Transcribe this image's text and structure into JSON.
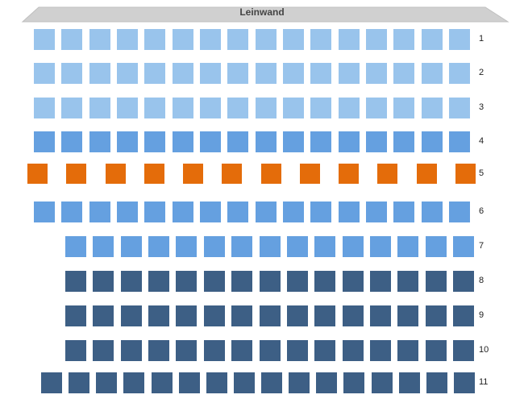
{
  "screen": {
    "label": "Leinwand"
  },
  "colors": {
    "screen_fill": "#d0d0d0",
    "screen_stroke": "#bfbfbf",
    "light_blue": "#99c4ec",
    "medium_blue": "#65a0e0",
    "orange": "#e46c0a",
    "dark_blue": "#3d5f85"
  },
  "rows": [
    {
      "label": "1",
      "color": "light_blue",
      "seats": 16
    },
    {
      "label": "2",
      "color": "light_blue",
      "seats": 16
    },
    {
      "label": "3",
      "color": "light_blue",
      "seats": 16
    },
    {
      "label": "4",
      "color": "medium_blue",
      "seats": 16
    },
    {
      "label": "5",
      "color": "orange",
      "seats": 12
    },
    {
      "label": "6",
      "color": "medium_blue",
      "seats": 16
    },
    {
      "label": "7",
      "color": "medium_blue",
      "seats": 15
    },
    {
      "label": "8",
      "color": "dark_blue",
      "seats": 15
    },
    {
      "label": "9",
      "color": "dark_blue",
      "seats": 15
    },
    {
      "label": "10",
      "color": "dark_blue",
      "seats": 15
    },
    {
      "label": "11",
      "color": "dark_blue",
      "seats": 16
    }
  ]
}
